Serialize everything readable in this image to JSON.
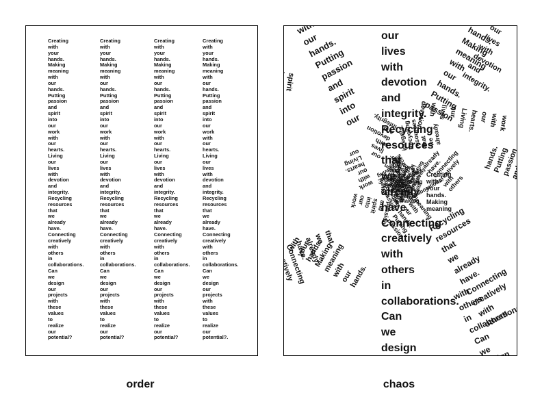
{
  "text_words": [
    "Creating",
    "with",
    "your",
    "hands.",
    "Making",
    "meaning",
    "with",
    "our",
    "hands.",
    "Putting",
    "passion",
    "and",
    "spirit",
    "into",
    "our",
    "work",
    "with",
    "our",
    "hearts.",
    "Living",
    "our",
    "lives",
    "with",
    "devotion",
    "and",
    "integrity.",
    "Recycling",
    "resources",
    "that",
    "we",
    "already",
    "have.",
    "Connecting",
    "creatively",
    "with",
    "others",
    "in",
    "collaborations.",
    "Can",
    "we",
    "design",
    "our",
    "projects",
    "with",
    "these",
    "values",
    "to",
    "realize",
    "our"
  ],
  "column_endings": [
    "potential?",
    "potential?",
    "potential?",
    "potential?."
  ],
  "center_words": [
    "our",
    "lives",
    "with",
    "devotion",
    "and",
    "integrity.",
    "Recycling",
    "resources",
    "that",
    "we",
    "already",
    "have.",
    "Connecting",
    "creatively",
    "with",
    "others",
    "in",
    "collaborations.",
    "Can",
    "we",
    "design"
  ],
  "captions": {
    "order": "order",
    "chaos": "chaos"
  }
}
